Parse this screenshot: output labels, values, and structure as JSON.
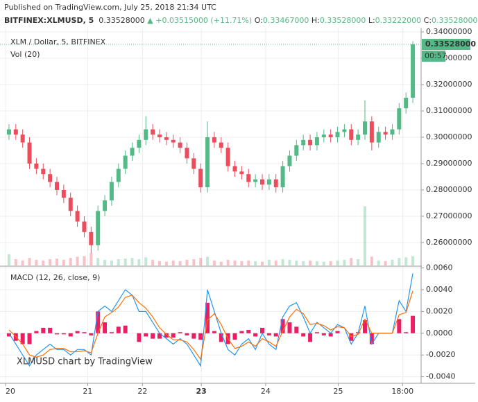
{
  "header": {
    "published": "Published on TradingView.com, July 25, 2018 21:34 UTC",
    "symbol": "BITFINEX:XLMUSD, 5",
    "last": "0.33528000",
    "arrow": "▲",
    "change": "+0.03515000 (+11.71%)",
    "open_label": "O:",
    "open": "0.33467000",
    "high_label": "H:",
    "high": "0.33528000",
    "low_label": "L:",
    "low": "0.33222000",
    "close_label": "C:",
    "close": "0.33528000"
  },
  "chart_data": {
    "type": "candlestick",
    "title": "XLM / Dollar, 5, BITFINEX",
    "volume_label": "Vol (20)",
    "macd_label": "MACD (12, 26, close, 9)",
    "watermark": "XLMUSD chart by TradingView",
    "up_color": "#53b987",
    "down_color": "#eb4d5c",
    "grid": true,
    "xlim": [
      0,
      60
    ],
    "xticks": [
      {
        "value": 0,
        "label": "20"
      },
      {
        "value": 12,
        "label": "21"
      },
      {
        "value": 20,
        "label": "22"
      },
      {
        "value": 28.6,
        "label": "23",
        "bold": true
      },
      {
        "value": 38,
        "label": "24"
      },
      {
        "value": 48.6,
        "label": "25"
      },
      {
        "value": 58,
        "label": "18:00"
      }
    ],
    "ylim": [
      0.2513,
      0.3416
    ],
    "yticks": [
      {
        "value": 0.26,
        "label": "0.26000000"
      },
      {
        "value": 0.27,
        "label": "0.27000000"
      },
      {
        "value": 0.28,
        "label": "0.28000000"
      },
      {
        "value": 0.29,
        "label": "0.29000000"
      },
      {
        "value": 0.3,
        "label": "0.30000000"
      },
      {
        "value": 0.31,
        "label": "0.31000000"
      },
      {
        "value": 0.32,
        "label": "0.32000000"
      },
      {
        "value": 0.33,
        "label": "0.33000000"
      },
      {
        "value": 0.34,
        "label": "0.34000000"
      }
    ],
    "price_line": {
      "value": 0.33528,
      "label": "0.33528000",
      "countdown": "00:57",
      "color": "#53b987"
    },
    "open": [
      0.301,
      0.303,
      0.301,
      0.298,
      0.29,
      0.288,
      0.286,
      0.283,
      0.28,
      0.277,
      0.272,
      0.268,
      0.264,
      0.259,
      0.272,
      0.276,
      0.283,
      0.288,
      0.293,
      0.296,
      0.299,
      0.303,
      0.301,
      0.3,
      0.299,
      0.298,
      0.296,
      0.292,
      0.288,
      0.281,
      0.3,
      0.298,
      0.296,
      0.289,
      0.287,
      0.286,
      0.283,
      0.284,
      0.282,
      0.284,
      0.281,
      0.289,
      0.293,
      0.297,
      0.299,
      0.297,
      0.3,
      0.301,
      0.3,
      0.302,
      0.303,
      0.299,
      0.301,
      0.306,
      0.298,
      0.302,
      0.301,
      0.303,
      0.311,
      0.315
    ],
    "high": [
      0.305,
      0.305,
      0.303,
      0.3,
      0.292,
      0.29,
      0.288,
      0.285,
      0.282,
      0.279,
      0.274,
      0.27,
      0.266,
      0.274,
      0.278,
      0.285,
      0.29,
      0.295,
      0.298,
      0.301,
      0.308,
      0.305,
      0.303,
      0.302,
      0.301,
      0.3,
      0.298,
      0.294,
      0.29,
      0.306,
      0.302,
      0.3,
      0.298,
      0.291,
      0.289,
      0.288,
      0.286,
      0.286,
      0.286,
      0.286,
      0.291,
      0.295,
      0.299,
      0.301,
      0.301,
      0.302,
      0.303,
      0.303,
      0.304,
      0.305,
      0.305,
      0.303,
      0.314,
      0.308,
      0.304,
      0.304,
      0.305,
      0.313,
      0.317,
      0.3365
    ],
    "low": [
      0.299,
      0.299,
      0.296,
      0.288,
      0.286,
      0.284,
      0.281,
      0.278,
      0.275,
      0.27,
      0.266,
      0.262,
      0.256,
      0.257,
      0.27,
      0.274,
      0.281,
      0.286,
      0.291,
      0.294,
      0.297,
      0.299,
      0.298,
      0.297,
      0.296,
      0.294,
      0.29,
      0.286,
      0.279,
      0.279,
      0.296,
      0.294,
      0.287,
      0.285,
      0.284,
      0.281,
      0.281,
      0.28,
      0.28,
      0.279,
      0.279,
      0.287,
      0.291,
      0.295,
      0.295,
      0.295,
      0.298,
      0.298,
      0.298,
      0.3,
      0.297,
      0.297,
      0.299,
      0.295,
      0.296,
      0.299,
      0.299,
      0.301,
      0.309,
      0.313
    ],
    "close": [
      0.303,
      0.301,
      0.298,
      0.29,
      0.288,
      0.286,
      0.283,
      0.28,
      0.277,
      0.272,
      0.268,
      0.264,
      0.259,
      0.272,
      0.276,
      0.283,
      0.288,
      0.293,
      0.296,
      0.299,
      0.303,
      0.301,
      0.3,
      0.299,
      0.298,
      0.296,
      0.292,
      0.288,
      0.281,
      0.3,
      0.298,
      0.296,
      0.289,
      0.287,
      0.286,
      0.283,
      0.284,
      0.282,
      0.284,
      0.281,
      0.289,
      0.293,
      0.297,
      0.299,
      0.297,
      0.3,
      0.301,
      0.3,
      0.302,
      0.303,
      0.299,
      0.301,
      0.306,
      0.298,
      0.302,
      0.301,
      0.303,
      0.311,
      0.315,
      0.33528
    ],
    "volume": [
      18,
      10,
      8,
      12,
      9,
      8,
      10,
      11,
      9,
      12,
      14,
      15,
      20,
      12,
      9,
      8,
      10,
      11,
      12,
      10,
      13,
      9,
      7,
      6,
      8,
      7,
      9,
      10,
      12,
      14,
      8,
      6,
      9,
      8,
      7,
      8,
      7,
      6,
      9,
      8,
      10,
      9,
      8,
      7,
      8,
      7,
      6,
      7,
      8,
      9,
      12,
      10,
      95,
      14,
      8,
      7,
      9,
      12,
      13,
      15
    ],
    "vlim": [
      0,
      100
    ],
    "mlim": [
      -0.0046,
      0.0061
    ],
    "mticks": [
      {
        "value": -0.004,
        "label": "-0.0040"
      },
      {
        "value": -0.002,
        "label": "-0.0020"
      },
      {
        "value": 0,
        "label": "0.0000"
      },
      {
        "value": 0.002,
        "label": "0.0020"
      },
      {
        "value": 0.004,
        "label": "0.0040"
      },
      {
        "value": 0.006,
        "label": "0.0060"
      }
    ],
    "macd": {
      "color": "#2196f3",
      "values": [
        0,
        -0.001,
        -0.002,
        -0.003,
        -0.002,
        -0.0015,
        -0.001,
        -0.0015,
        -0.0015,
        -0.002,
        -0.0015,
        -0.0015,
        -0.002,
        0.002,
        0.0025,
        0.002,
        0.003,
        0.004,
        0.0035,
        0.002,
        0.002,
        0.001,
        0,
        -0.0005,
        -0.001,
        -0.0005,
        -0.001,
        -0.002,
        -0.003,
        0.004,
        0.002,
        0,
        -0.0015,
        -0.002,
        -0.001,
        -0.0005,
        -0.0015,
        0,
        -0.001,
        -0.0015,
        0.0015,
        0.0025,
        0.0028,
        0.0015,
        0,
        0.001,
        0.0005,
        0,
        0.0008,
        0.0005,
        -0.001,
        0,
        0.0025,
        -0.001,
        0,
        0,
        0,
        0.003,
        0.002,
        0.0055
      ]
    },
    "signal": {
      "color": "#ff6d00",
      "values": [
        0.0003,
        -0.0003,
        -0.001,
        -0.002,
        -0.0022,
        -0.002,
        -0.0015,
        -0.0014,
        -0.0014,
        -0.0017,
        -0.0017,
        -0.0016,
        -0.0018,
        0,
        0.0015,
        0.0019,
        0.0024,
        0.0033,
        0.0035,
        0.0028,
        0.0023,
        0.0015,
        0.0005,
        -0.0001,
        -0.0006,
        -0.0006,
        -0.0008,
        -0.0015,
        -0.0024,
        0.0012,
        0.0018,
        0.0008,
        -0.0005,
        -0.0014,
        -0.0012,
        -0.0008,
        -0.0012,
        -0.0005,
        -0.0008,
        -0.0012,
        0.0002,
        0.0015,
        0.0022,
        0.0018,
        0.0008,
        0.0009,
        0.0007,
        0.0003,
        0.0006,
        0.0005,
        -0.0003,
        -0.0001,
        0.0013,
        0,
        0,
        0,
        0,
        0.0017,
        0.0019,
        0.0039
      ]
    },
    "histogram": {
      "color": "#e91e63",
      "values": [
        -0.0003,
        -0.0007,
        -0.001,
        -0.001,
        0.0002,
        0.0005,
        0.0005,
        -0.0001,
        -0.0001,
        -0.0003,
        0.0002,
        0.0001,
        -0.0002,
        0.002,
        0.001,
        0.0001,
        0.0006,
        0.0007,
        0,
        -0.0008,
        -0.0003,
        -0.0005,
        -0.0005,
        -0.0004,
        -0.0004,
        0.0001,
        -0.0002,
        -0.0005,
        -0.0006,
        0.0028,
        0.0002,
        -0.0008,
        -0.001,
        -0.0006,
        0.0002,
        0.0003,
        -0.0003,
        0.0005,
        -0.0002,
        -0.0003,
        0.0013,
        0.001,
        0.0006,
        -0.0003,
        -0.0008,
        0.0001,
        -0.0002,
        -0.0003,
        0.0002,
        0,
        -0.0007,
        0.0001,
        0.0012,
        -0.001,
        0,
        0,
        0,
        0.0013,
        0.0001,
        0.0016
      ]
    }
  }
}
